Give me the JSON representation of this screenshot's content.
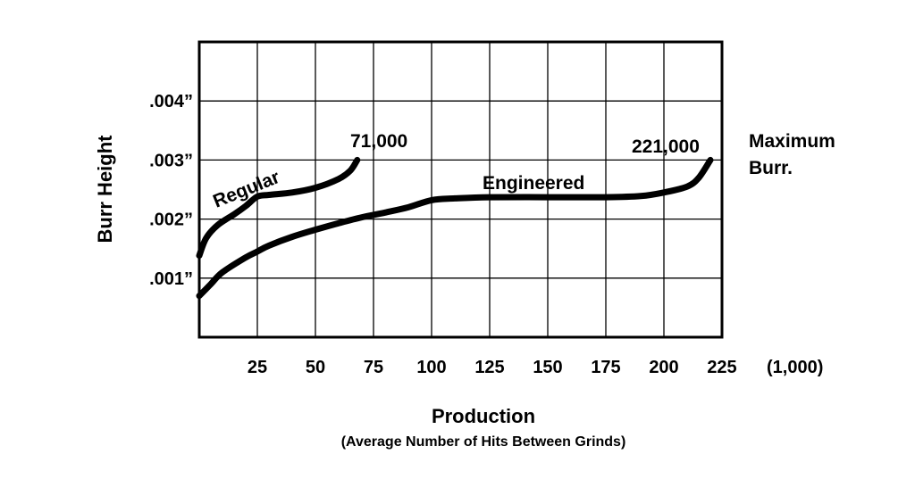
{
  "chart_data": {
    "type": "line",
    "title": "",
    "xlabel": "Production",
    "xlabel_sub": "(Average Number of Hits Between Grinds)",
    "ylabel": "Burr Height",
    "x_unit": "(1,000)",
    "xlim": [
      0,
      225
    ],
    "ylim": [
      0,
      0.005
    ],
    "x_ticks": [
      25,
      50,
      75,
      100,
      125,
      150,
      175,
      200,
      225
    ],
    "x_tick_labels": [
      "25",
      "50",
      "75",
      "100",
      "125",
      "150",
      "175",
      "200",
      "225"
    ],
    "y_ticks": [
      0.001,
      0.002,
      0.003,
      0.004
    ],
    "y_tick_labels": [
      ".001”",
      ".002”",
      ".003”",
      ".004”"
    ],
    "grid": true,
    "series": [
      {
        "name": "Regular",
        "x": [
          0,
          3,
          8,
          15,
          20,
          25,
          30,
          40,
          50,
          60,
          65,
          68
        ],
        "y": [
          0.00138,
          0.00168,
          0.0019,
          0.00208,
          0.00222,
          0.00238,
          0.00241,
          0.00245,
          0.00253,
          0.00268,
          0.00282,
          0.003
        ]
      },
      {
        "name": "Engineered",
        "x": [
          0,
          5,
          10,
          20,
          25,
          30,
          40,
          50,
          60,
          70,
          80,
          90,
          100,
          110,
          125,
          150,
          175,
          190,
          200,
          210,
          215,
          220
        ],
        "y": [
          0.0007,
          0.0009,
          0.0011,
          0.00135,
          0.00145,
          0.00155,
          0.0017,
          0.00182,
          0.00193,
          0.00203,
          0.00211,
          0.0022,
          0.00232,
          0.00235,
          0.00237,
          0.00237,
          0.00237,
          0.00239,
          0.00245,
          0.00255,
          0.0027,
          0.003
        ]
      }
    ],
    "annotations": [
      {
        "text": "71,000",
        "x": 71,
        "y": 0.003
      },
      {
        "text": "221,000",
        "x": 221,
        "y": 0.003
      },
      {
        "text": "Maximum",
        "role": "max-label-line1"
      },
      {
        "text": "Burr.",
        "role": "max-label-line2"
      }
    ]
  }
}
